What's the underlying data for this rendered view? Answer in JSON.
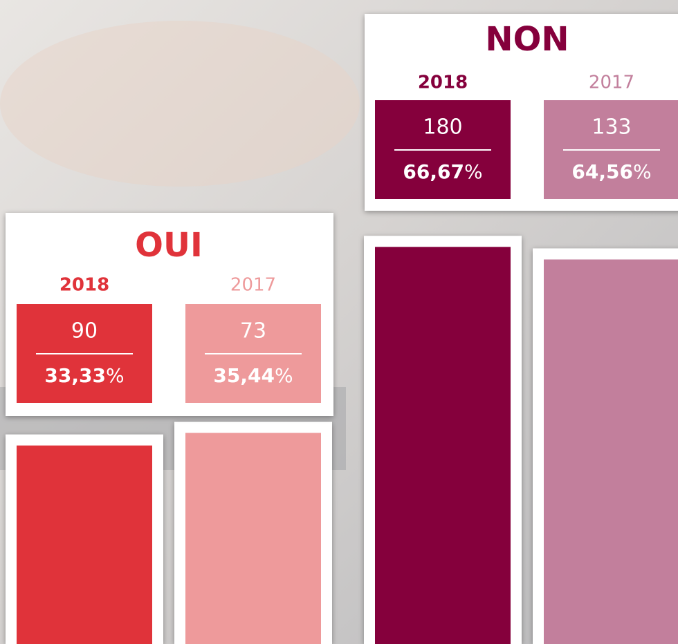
{
  "chart_data": {
    "type": "bar",
    "categories": [
      "OUI",
      "NON"
    ],
    "category_colors": [
      "#e0333a",
      "#85003c"
    ],
    "series": [
      {
        "name": "2018",
        "colors": [
          "#e0333a",
          "#85003c"
        ],
        "counts": [
          90,
          180
        ],
        "values": [
          33.33,
          66.67
        ],
        "value_labels": [
          "33,33%",
          "66,67%"
        ]
      },
      {
        "name": "2017",
        "colors": [
          "#ee9a9b",
          "#c27f9c"
        ],
        "counts": [
          73,
          133
        ],
        "values": [
          35.44,
          64.56
        ],
        "value_labels": [
          "35,44%",
          "64,56%"
        ]
      }
    ]
  }
}
